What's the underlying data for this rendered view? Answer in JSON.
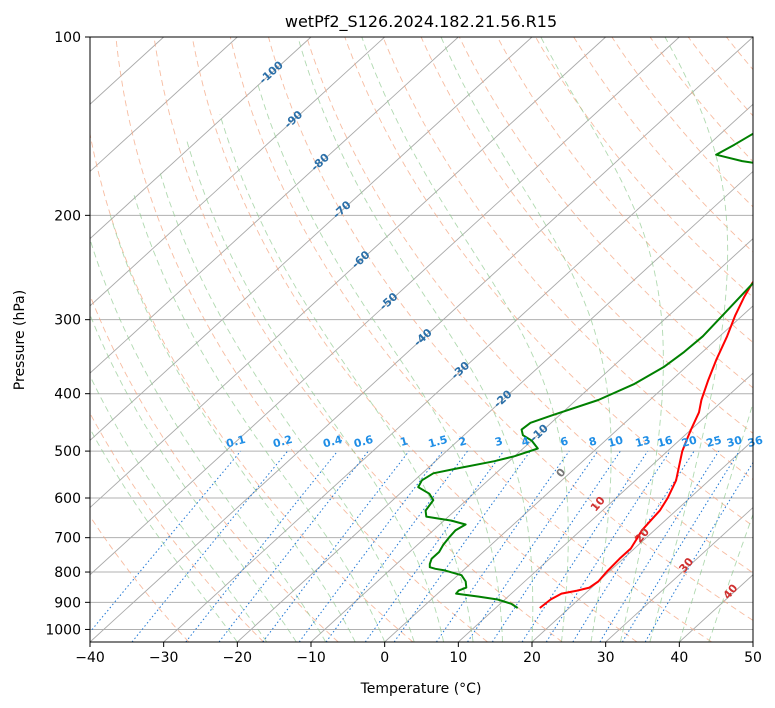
{
  "chart_data": {
    "type": "line",
    "title": "wetPf2_S126.2024.182.21.56.R15",
    "xlabel": "Temperature (°C)",
    "ylabel": "Pressure (hPa)",
    "xlim": [
      -40,
      50
    ],
    "ylim": [
      1050,
      100
    ],
    "y_scale": "log",
    "grid": true,
    "x_ticks": [
      -40,
      -30,
      -20,
      -10,
      0,
      10,
      20,
      30,
      40,
      50
    ],
    "x_tick_labels": [
      "−40",
      "−30",
      "−20",
      "−10",
      "0",
      "10",
      "20",
      "30",
      "40",
      "50"
    ],
    "y_ticks": [
      100,
      200,
      300,
      400,
      500,
      600,
      700,
      800,
      900,
      1000
    ],
    "y_tick_labels": [
      "100",
      "200",
      "300",
      "400",
      "500",
      "600",
      "700",
      "800",
      "900",
      "1000"
    ],
    "series": [
      {
        "color": "#ff0000",
        "points": [
          [
            16.0,
            920
          ],
          [
            16.2,
            890
          ],
          [
            16.8,
            870
          ],
          [
            18.5,
            860
          ],
          [
            19.7,
            850
          ],
          [
            20.0,
            830
          ],
          [
            19.7,
            800
          ],
          [
            19.5,
            760
          ],
          [
            19.5,
            730
          ],
          [
            18.8,
            700
          ],
          [
            18.3,
            680
          ],
          [
            18.0,
            650
          ],
          [
            17.8,
            630
          ],
          [
            17.0,
            600
          ],
          [
            15.5,
            560
          ],
          [
            13.8,
            530
          ],
          [
            12.0,
            500
          ],
          [
            11.0,
            480
          ],
          [
            10.0,
            460
          ],
          [
            8.5,
            430
          ],
          [
            7.0,
            410
          ],
          [
            5.0,
            380
          ],
          [
            3.0,
            350
          ],
          [
            1.0,
            320
          ],
          [
            -1.0,
            295
          ],
          [
            -2.5,
            275
          ],
          [
            -3.5,
            260
          ],
          [
            -4.0,
            250
          ],
          [
            -3.8,
            240
          ],
          [
            -3.0,
            220
          ],
          [
            -2.0,
            200
          ],
          [
            -0.5,
            190
          ],
          [
            2.5,
            180
          ],
          [
            6.5,
            168
          ],
          [
            9.5,
            155
          ],
          [
            12.0,
            142
          ],
          [
            13.5,
            132
          ],
          [
            14.0,
            128
          ],
          [
            15.0,
            123
          ],
          [
            17.0,
            117
          ],
          [
            18.5,
            112
          ],
          [
            19.0,
            109
          ],
          [
            20.0,
            106
          ],
          [
            21.5,
            103
          ],
          [
            23.0,
            100
          ]
        ]
      },
      {
        "color": "#008000",
        "points": [
          [
            13.0,
            920
          ],
          [
            11.5,
            905
          ],
          [
            9.0,
            890
          ],
          [
            6.0,
            880
          ],
          [
            2.5,
            870
          ],
          [
            2.4,
            860
          ],
          [
            3.0,
            850
          ],
          [
            2.0,
            830
          ],
          [
            0.5,
            810
          ],
          [
            -2.5,
            795
          ],
          [
            -4.0,
            790
          ],
          [
            -5.0,
            785
          ],
          [
            -5.5,
            775
          ],
          [
            -6.0,
            760
          ],
          [
            -6.0,
            740
          ],
          [
            -6.5,
            720
          ],
          [
            -6.8,
            700
          ],
          [
            -7.0,
            680
          ],
          [
            -6.5,
            665
          ],
          [
            -9.0,
            655
          ],
          [
            -13.0,
            645
          ],
          [
            -14.0,
            630
          ],
          [
            -14.5,
            605
          ],
          [
            -16.0,
            590
          ],
          [
            -18.5,
            575
          ],
          [
            -19.0,
            560
          ],
          [
            -18.5,
            545
          ],
          [
            -16.0,
            535
          ],
          [
            -12.0,
            520
          ],
          [
            -10.0,
            510
          ],
          [
            -8.0,
            495
          ],
          [
            -10.0,
            480
          ],
          [
            -12.0,
            470
          ],
          [
            -13.0,
            460
          ],
          [
            -12.8,
            448
          ],
          [
            -11.0,
            435
          ],
          [
            -7.0,
            410
          ],
          [
            -4.5,
            385
          ],
          [
            -3.0,
            360
          ],
          [
            -2.5,
            340
          ],
          [
            -2.3,
            320
          ],
          [
            -2.8,
            290
          ],
          [
            -3.3,
            265
          ],
          [
            -3.8,
            240
          ],
          [
            -4.2,
            220
          ],
          [
            -4.5,
            200
          ],
          [
            -5.0,
            185
          ],
          [
            -6.0,
            178
          ],
          [
            -11.0,
            170
          ],
          [
            -18.0,
            165
          ],
          [
            -23.0,
            162
          ],
          [
            -27.5,
            158
          ],
          [
            -26.5,
            152
          ],
          [
            -25.5,
            145
          ],
          [
            -24.5,
            142
          ],
          [
            -22.0,
            141
          ],
          [
            -11.0,
            140
          ],
          [
            -6.0,
            138
          ],
          [
            -6.0,
            133
          ],
          [
            -6.5,
            127
          ],
          [
            -6.5,
            122
          ],
          [
            -5.0,
            117
          ],
          [
            -3.0,
            112
          ],
          [
            -1.5,
            107
          ],
          [
            -1.0,
            103
          ],
          [
            -0.8,
            100
          ]
        ]
      }
    ],
    "annotations": {
      "isotherm_labels": [
        "-100",
        "-90",
        "-80",
        "-70",
        "-60",
        "-50",
        "-40",
        "-30",
        "-20",
        "-10"
      ],
      "mixing_ratio_labels": [
        "0.1",
        "0.2",
        "0.4",
        "0.6",
        "1",
        "1.5",
        "2",
        "3",
        "4",
        "6",
        "8",
        "10",
        "13",
        "16",
        "20",
        "25",
        "30",
        "36"
      ],
      "moist_adiabat_labels": [
        "0",
        "10",
        "20",
        "30",
        "40"
      ]
    }
  }
}
